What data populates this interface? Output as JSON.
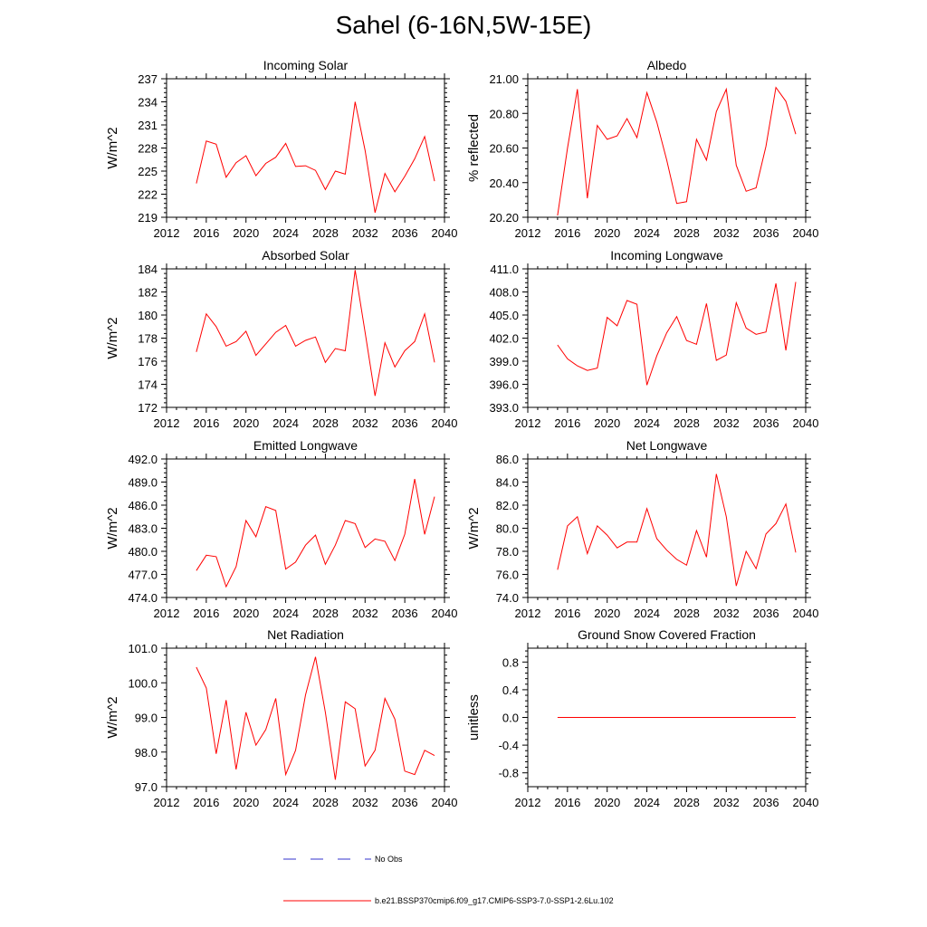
{
  "figure": {
    "title": "Sahel (6-16N,5W-15E)"
  },
  "legend": {
    "items": [
      {
        "label": "No Obs",
        "color": "#3333cc",
        "dashed": true
      },
      {
        "label": "b.e21.BSSP370cmip6.f09_g17.CMIP6-SSP3-7.0-SSP1-2.6Lu.102",
        "color": "#ff0000",
        "dashed": false
      }
    ]
  },
  "chart_data": [
    {
      "type": "line",
      "title": "Incoming Solar",
      "ylabel": "W/m^2",
      "xlim": [
        2012,
        2040
      ],
      "ylim": [
        219,
        237
      ],
      "xticks": [
        "2012",
        "2016",
        "2020",
        "2024",
        "2028",
        "2032",
        "2036",
        "2040"
      ],
      "yticks": [
        "219",
        "222",
        "225",
        "228",
        "231",
        "234",
        "237"
      ],
      "line_color": "#ff0000",
      "x": [
        2015,
        2016,
        2017,
        2018,
        2019,
        2020,
        2021,
        2022,
        2023,
        2024,
        2025,
        2026,
        2027,
        2028,
        2029,
        2030,
        2031,
        2032,
        2033,
        2034,
        2035,
        2036,
        2037,
        2038,
        2039
      ],
      "values": [
        223.4,
        228.9,
        228.5,
        224.2,
        226.1,
        227.0,
        224.4,
        226.0,
        226.8,
        228.6,
        225.6,
        225.7,
        225.1,
        222.6,
        225.0,
        224.6,
        234.0,
        227.7,
        219.6,
        224.7,
        222.3,
        224.3,
        226.6,
        229.5,
        223.7
      ]
    },
    {
      "type": "line",
      "title": "Albedo",
      "ylabel": "% reflected",
      "xlim": [
        2012,
        2040
      ],
      "ylim": [
        20.2,
        21.0
      ],
      "xticks": [
        "2012",
        "2016",
        "2020",
        "2024",
        "2028",
        "2032",
        "2036",
        "2040"
      ],
      "yticks": [
        "20.20",
        "20.40",
        "20.60",
        "20.80",
        "21.00"
      ],
      "line_color": "#ff0000",
      "x": [
        2015,
        2016,
        2017,
        2018,
        2019,
        2020,
        2021,
        2022,
        2023,
        2024,
        2025,
        2026,
        2027,
        2028,
        2029,
        2030,
        2031,
        2032,
        2033,
        2034,
        2035,
        2036,
        2037,
        2038,
        2039
      ],
      "values": [
        20.21,
        20.6,
        20.94,
        20.31,
        20.73,
        20.65,
        20.67,
        20.77,
        20.66,
        20.92,
        20.75,
        20.53,
        20.28,
        20.29,
        20.65,
        20.53,
        20.81,
        20.94,
        20.5,
        20.35,
        20.37,
        20.61,
        20.95,
        20.87,
        20.68
      ]
    },
    {
      "type": "line",
      "title": "Absorbed Solar",
      "ylabel": "W/m^2",
      "xlim": [
        2012,
        2040
      ],
      "ylim": [
        172,
        184
      ],
      "xticks": [
        "2012",
        "2016",
        "2020",
        "2024",
        "2028",
        "2032",
        "2036",
        "2040"
      ],
      "yticks": [
        "172",
        "174",
        "176",
        "178",
        "180",
        "182",
        "184"
      ],
      "line_color": "#ff0000",
      "x": [
        2015,
        2016,
        2017,
        2018,
        2019,
        2020,
        2021,
        2022,
        2023,
        2024,
        2025,
        2026,
        2027,
        2028,
        2029,
        2030,
        2031,
        2032,
        2033,
        2034,
        2035,
        2036,
        2037,
        2038,
        2039
      ],
      "values": [
        176.8,
        180.1,
        179.0,
        177.3,
        177.7,
        178.6,
        176.5,
        177.5,
        178.5,
        179.1,
        177.3,
        177.8,
        178.1,
        175.9,
        177.1,
        176.9,
        183.9,
        178.5,
        173.0,
        177.6,
        175.5,
        176.9,
        177.7,
        180.1,
        175.9
      ]
    },
    {
      "type": "line",
      "title": "Incoming Longwave",
      "ylabel": "",
      "xlim": [
        2012,
        2040
      ],
      "ylim": [
        393.0,
        411.0
      ],
      "xticks": [
        "2012",
        "2016",
        "2020",
        "2024",
        "2028",
        "2032",
        "2036",
        "2040"
      ],
      "yticks": [
        "393.0",
        "396.0",
        "399.0",
        "402.0",
        "405.0",
        "408.0",
        "411.0"
      ],
      "line_color": "#ff0000",
      "x": [
        2015,
        2016,
        2017,
        2018,
        2019,
        2020,
        2021,
        2022,
        2023,
        2024,
        2025,
        2026,
        2027,
        2028,
        2029,
        2030,
        2031,
        2032,
        2033,
        2034,
        2035,
        2036,
        2037,
        2038,
        2039
      ],
      "values": [
        401.1,
        399.3,
        398.4,
        397.8,
        398.1,
        404.7,
        403.6,
        406.9,
        406.4,
        395.9,
        399.7,
        402.7,
        404.8,
        401.7,
        401.2,
        406.5,
        399.1,
        399.8,
        406.6,
        403.3,
        402.5,
        402.8,
        409.1,
        400.4,
        409.3
      ]
    },
    {
      "type": "line",
      "title": "Emitted Longwave",
      "ylabel": "W/m^2",
      "xlim": [
        2012,
        2040
      ],
      "ylim": [
        474.0,
        492.0
      ],
      "xticks": [
        "2012",
        "2016",
        "2020",
        "2024",
        "2028",
        "2032",
        "2036",
        "2040"
      ],
      "yticks": [
        "474.0",
        "477.0",
        "480.0",
        "483.0",
        "486.0",
        "489.0",
        "492.0"
      ],
      "line_color": "#ff0000",
      "x": [
        2015,
        2016,
        2017,
        2018,
        2019,
        2020,
        2021,
        2022,
        2023,
        2024,
        2025,
        2026,
        2027,
        2028,
        2029,
        2030,
        2031,
        2032,
        2033,
        2034,
        2035,
        2036,
        2037,
        2038,
        2039
      ],
      "values": [
        477.5,
        479.5,
        479.3,
        475.4,
        478.0,
        484.0,
        481.9,
        485.8,
        485.3,
        477.7,
        478.6,
        480.8,
        482.1,
        478.3,
        480.8,
        484.0,
        483.6,
        480.5,
        481.6,
        481.3,
        478.8,
        482.2,
        489.4,
        482.2,
        487.1
      ]
    },
    {
      "type": "line",
      "title": "Net Longwave",
      "ylabel": "W/m^2",
      "xlim": [
        2012,
        2040
      ],
      "ylim": [
        74.0,
        86.0
      ],
      "xticks": [
        "2012",
        "2016",
        "2020",
        "2024",
        "2028",
        "2032",
        "2036",
        "2040"
      ],
      "yticks": [
        "74.0",
        "76.0",
        "78.0",
        "80.0",
        "82.0",
        "84.0",
        "86.0"
      ],
      "line_color": "#ff0000",
      "x": [
        2015,
        2016,
        2017,
        2018,
        2019,
        2020,
        2021,
        2022,
        2023,
        2024,
        2025,
        2026,
        2027,
        2028,
        2029,
        2030,
        2031,
        2032,
        2033,
        2034,
        2035,
        2036,
        2037,
        2038,
        2039
      ],
      "values": [
        76.4,
        80.2,
        81.0,
        77.8,
        80.2,
        79.4,
        78.3,
        78.8,
        78.8,
        81.7,
        79.1,
        78.1,
        77.3,
        76.8,
        79.8,
        77.5,
        84.7,
        81.0,
        75.0,
        78.0,
        76.5,
        79.5,
        80.4,
        82.1,
        77.9
      ]
    },
    {
      "type": "line",
      "title": "Net Radiation",
      "ylabel": "W/m^2",
      "xlim": [
        2012,
        2040
      ],
      "ylim": [
        97.0,
        101.0
      ],
      "xticks": [
        "2012",
        "2016",
        "2020",
        "2024",
        "2028",
        "2032",
        "2036",
        "2040"
      ],
      "yticks": [
        "97.0",
        "98.0",
        "99.0",
        "100.0",
        "101.0"
      ],
      "line_color": "#ff0000",
      "x": [
        2015,
        2016,
        2017,
        2018,
        2019,
        2020,
        2021,
        2022,
        2023,
        2024,
        2025,
        2026,
        2027,
        2028,
        2029,
        2030,
        2031,
        2032,
        2033,
        2034,
        2035,
        2036,
        2037,
        2038,
        2039
      ],
      "values": [
        100.45,
        99.85,
        97.95,
        99.5,
        97.5,
        99.15,
        98.2,
        98.65,
        99.55,
        97.35,
        98.05,
        99.65,
        100.75,
        99.15,
        97.2,
        99.45,
        99.25,
        97.6,
        98.05,
        99.55,
        98.95,
        97.45,
        97.35,
        98.05,
        97.9
      ]
    },
    {
      "type": "line",
      "title": "Ground Snow Covered Fraction",
      "ylabel": "unitless",
      "xlim": [
        2012,
        2040
      ],
      "ylim": [
        -1.0,
        1.0
      ],
      "xticks": [
        "2012",
        "2016",
        "2020",
        "2024",
        "2028",
        "2032",
        "2036",
        "2040"
      ],
      "yticks": [
        "-0.8",
        "-0.4",
        "0.0",
        "0.4",
        "0.8"
      ],
      "ytick_values": [
        -0.8,
        -0.4,
        0.0,
        0.4,
        0.8
      ],
      "line_color": "#ff0000",
      "x": [
        2015,
        2016,
        2017,
        2018,
        2019,
        2020,
        2021,
        2022,
        2023,
        2024,
        2025,
        2026,
        2027,
        2028,
        2029,
        2030,
        2031,
        2032,
        2033,
        2034,
        2035,
        2036,
        2037,
        2038,
        2039
      ],
      "values": [
        0,
        0,
        0,
        0,
        0,
        0,
        0,
        0,
        0,
        0,
        0,
        0,
        0,
        0,
        0,
        0,
        0,
        0,
        0,
        0,
        0,
        0,
        0,
        0,
        0
      ]
    }
  ]
}
